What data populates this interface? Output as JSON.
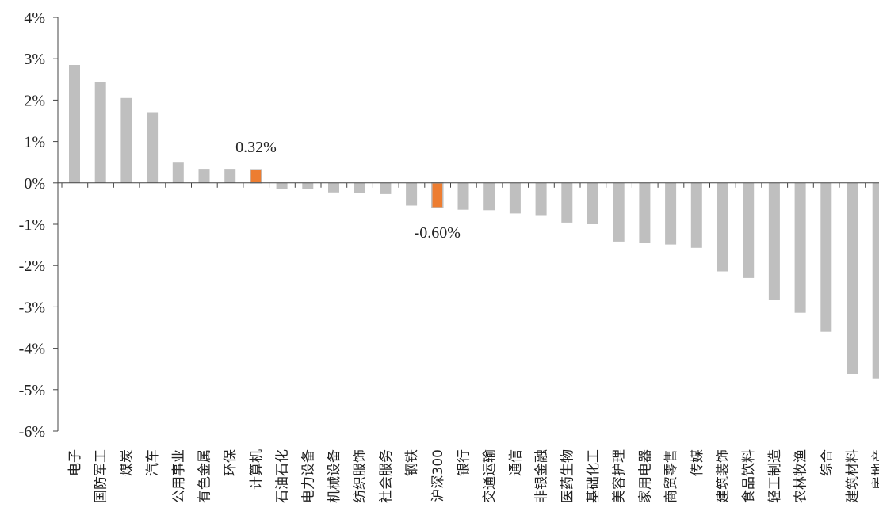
{
  "chart_data": {
    "type": "bar",
    "title": "",
    "xlabel": "",
    "ylabel": "",
    "ylim": [
      -6,
      4
    ],
    "y_ticks": [
      "4%",
      "3%",
      "2%",
      "1%",
      "0%",
      "-1%",
      "-2%",
      "-3%",
      "-4%",
      "-5%",
      "-6%"
    ],
    "grid": false,
    "categories": [
      "电子",
      "国防军工",
      "煤炭",
      "汽车",
      "公用事业",
      "有色金属",
      "环保",
      "计算机",
      "石油石化",
      "电力设备",
      "机械设备",
      "纺织服饰",
      "社会服务",
      "钢铁",
      "沪深300",
      "银行",
      "交通运输",
      "通信",
      "非银金融",
      "医药生物",
      "基础化工",
      "美容护理",
      "家用电器",
      "商贸零售",
      "传媒",
      "建筑装饰",
      "食品饮料",
      "轻工制造",
      "农林牧渔",
      "综合",
      "建筑材料",
      "房地产"
    ],
    "values": [
      2.85,
      2.43,
      2.05,
      1.71,
      0.49,
      0.34,
      0.34,
      0.32,
      -0.14,
      -0.15,
      -0.23,
      -0.24,
      -0.27,
      -0.55,
      -0.6,
      -0.65,
      -0.66,
      -0.74,
      -0.78,
      -0.96,
      -1.0,
      -1.42,
      -1.46,
      -1.49,
      -1.57,
      -2.14,
      -2.3,
      -2.83,
      -3.14,
      -3.6,
      -4.62,
      -4.73
    ],
    "highlight": [
      "计算机",
      "沪深300"
    ],
    "colors": {
      "default": "#bfbfbf",
      "highlight": "#ed7d31"
    },
    "annotations": [
      {
        "category": "计算机",
        "text": "0.32%"
      },
      {
        "category": "沪深300",
        "text": "-0.60%"
      }
    ]
  }
}
